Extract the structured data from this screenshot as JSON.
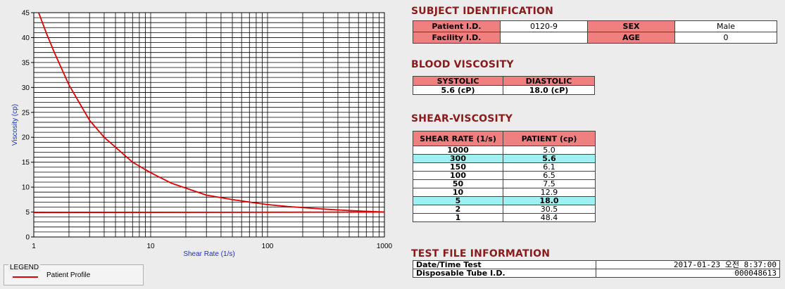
{
  "chart_data": {
    "type": "line",
    "xlabel": "Shear Rate (1/s)",
    "ylabel": "Viscosity (cp)",
    "x_scale": "log",
    "xlim": [
      1,
      1000
    ],
    "ylim": [
      0,
      45
    ],
    "x_tick_labels": [
      "1",
      "10",
      "100",
      "1000"
    ],
    "x_ticks": [
      1,
      10,
      100,
      1000
    ],
    "y_ticks": [
      0,
      5,
      10,
      15,
      20,
      25,
      30,
      35,
      40,
      45
    ],
    "grid": true,
    "series": [
      {
        "name": "Patient Profile",
        "color": "#e00000",
        "x": [
          1.1,
          1.3,
          1.5,
          2,
          3,
          4,
          5,
          7,
          10,
          15,
          20,
          30,
          50,
          70,
          100,
          150,
          200,
          300,
          500,
          700,
          1000
        ],
        "y": [
          45,
          40.5,
          37,
          30.5,
          23.4,
          20,
          18,
          15,
          12.9,
          10.8,
          9.8,
          8.4,
          7.5,
          7.0,
          6.5,
          6.1,
          5.9,
          5.6,
          5.3,
          5.15,
          5.0
        ]
      },
      {
        "color": "#e00000",
        "x": [
          1,
          1000
        ],
        "y": [
          4.9,
          5.0
        ]
      }
    ]
  },
  "legend": {
    "title": "LEGEND",
    "label": "Patient Profile"
  },
  "subject": {
    "title": "SUBJECT IDENTIFICATION",
    "patient_id_label": "Patient I.D.",
    "patient_id": "0120-9",
    "facility_id_label": "Facility I.D.",
    "facility_id": "",
    "sex_label": "SEX",
    "sex": "Male",
    "age_label": "AGE",
    "age": "0"
  },
  "blood": {
    "title": "BLOOD VISCOSITY",
    "systolic_label": "SYSTOLIC",
    "diastolic_label": "DIASTOLIC",
    "systolic": "5.6 (cP)",
    "diastolic": "18.0 (cP)"
  },
  "shear": {
    "title": "SHEAR-VISCOSITY",
    "col_rate": "SHEAR RATE (1/s)",
    "col_patient": "PATIENT (cp)",
    "rows": [
      {
        "rate": "1000",
        "value": "5.0"
      },
      {
        "rate": "300",
        "value": "5.6"
      },
      {
        "rate": "150",
        "value": "6.1"
      },
      {
        "rate": "100",
        "value": "6.5"
      },
      {
        "rate": "50",
        "value": "7.5"
      },
      {
        "rate": "10",
        "value": "12.9"
      },
      {
        "rate": "5",
        "value": "18.0"
      },
      {
        "rate": "2",
        "value": "30.5"
      },
      {
        "rate": "1",
        "value": "48.4"
      }
    ]
  },
  "testfile": {
    "title": "TEST FILE INFORMATION",
    "date_label": "Date/Time Test",
    "date_value": "2017-01-23  오전 8:37:00",
    "tube_label": "Disposable Tube I.D.",
    "tube_value": "000048613"
  }
}
